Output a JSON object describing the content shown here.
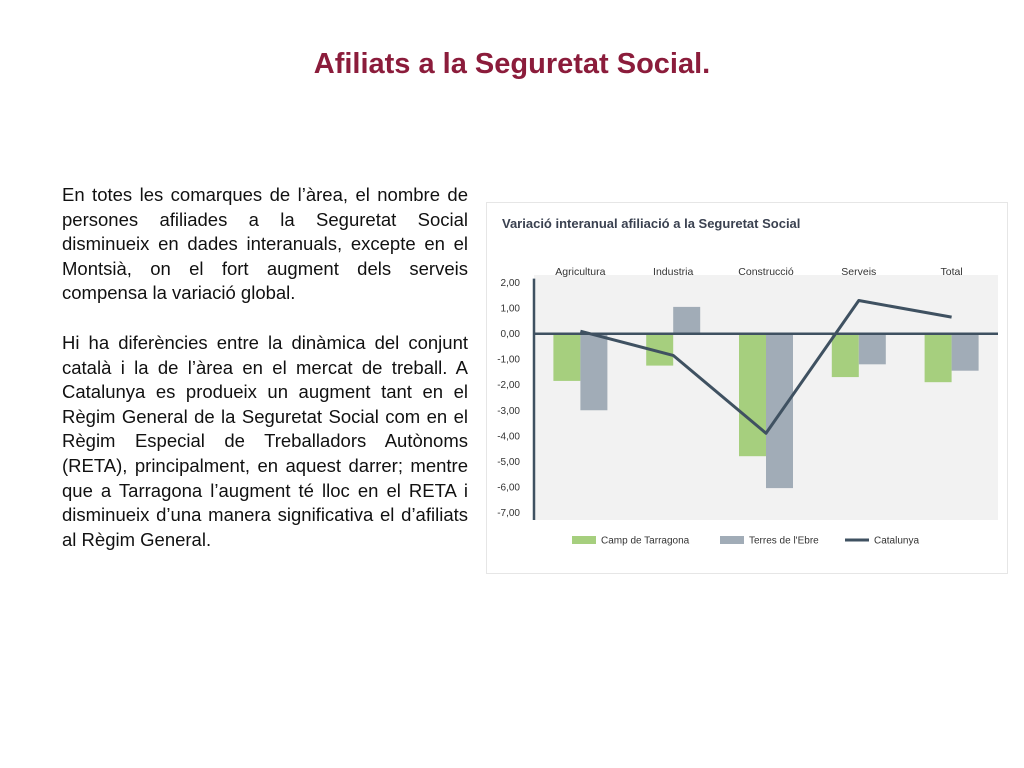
{
  "page": {
    "title": "Afiliats a la Seguretat Social.",
    "paragraphs": [
      "En totes les comarques de l’àrea, el nombre de persones afiliades a la Seguretat Social disminueix en dades interanuals, excepte en el Montsià, on el fort augment dels serveis compensa la variació global.",
      "Hi ha diferències entre la dinàmica del conjunt català i la de l’àrea en el mercat de treball. A Catalunya es produeix un augment tant en el Règim General de la Seguretat Social com en el Règim Especial de Treballadors Autònoms (RETA), principalment, en aquest darrer; mentre que a Tarragona l’augment té lloc en el RETA i disminueix d’una manera significativa el d’afiliats al Règim General."
    ]
  },
  "chart_data": {
    "type": "bar",
    "title": "Variació interanual afiliació a la Seguretat Social",
    "categories": [
      "Agricultura",
      "Industria",
      "Construcció",
      "Serveis",
      "Total"
    ],
    "y_tick_labels": [
      "2,00",
      "1,00",
      "0,00",
      "-1,00",
      "-2,00",
      "-3,00",
      "-4,00",
      "-5,00",
      "-6,00",
      "-7,00"
    ],
    "ylim": [
      -7,
      2
    ],
    "grid": false,
    "legend_position": "bottom",
    "series": [
      {
        "name": "Camp de Tarragona",
        "kind": "bar",
        "color": "#a6cf7e",
        "values": [
          -1.85,
          -1.25,
          -4.8,
          -1.7,
          -1.9
        ]
      },
      {
        "name": "Terres de l'Ebre",
        "kind": "bar",
        "color": "#a1acb7",
        "values": [
          -3.0,
          1.05,
          -6.05,
          -1.2,
          -1.45
        ]
      },
      {
        "name": "Catalunya",
        "kind": "line",
        "color": "#3f5161",
        "values": [
          0.1,
          -0.85,
          -3.9,
          1.3,
          0.65
        ]
      }
    ],
    "colors": {
      "axis": "#3f5161",
      "background": "#f2f2f2",
      "title": "#8b1c3b"
    }
  }
}
